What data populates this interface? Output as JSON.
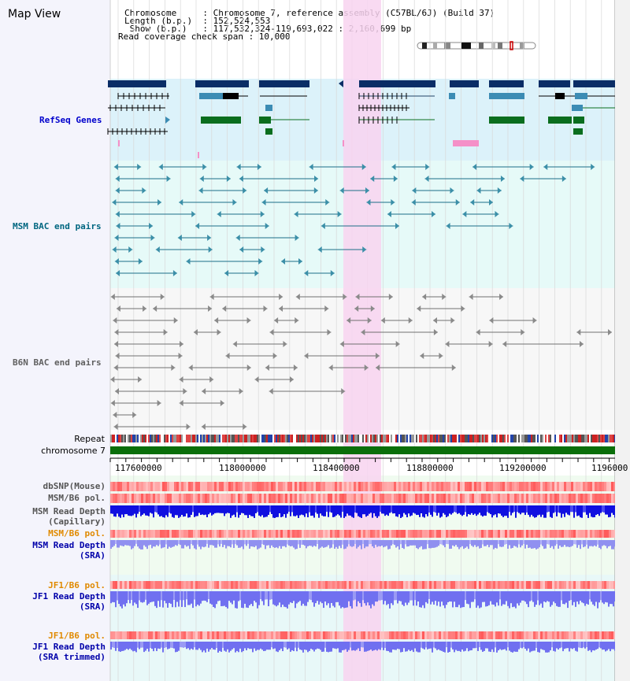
{
  "header": {
    "title": "Map View",
    "info": [
      "Chromosome     : Chromosome 7, reference assembly (C57BL/6J) (Build 37)",
      "Length (b.p.)  : 152,524,553",
      " Show (b.p.)   : 117,532,324-119,693,022 : 2,160,699 bp",
      "Read coverage check span : 10,000"
    ]
  },
  "tracks": {
    "refseq": "RefSeq Genes",
    "msm_bac": "MSM BAC end pairs",
    "b6n_bac": "B6N BAC end pairs",
    "repeat": "Repeat",
    "chromosome": "chromosome 7",
    "dbsnp": "dbSNP(Mouse)",
    "msm_pol_1": "MSM/B6 pol.",
    "msm_depth_cap_1": "MSM Read Depth",
    "msm_depth_cap_2": "(Capillary)",
    "msm_pol_2": "MSM/B6 pol.",
    "msm_depth_sra_1": "MSM Read Depth",
    "msm_depth_sra_2": "(SRA)",
    "jf1_pol_1": "JF1/B6 pol.",
    "jf1_depth_sra_1": "JF1 Read Depth",
    "jf1_depth_sra_2": "(SRA)",
    "jf1_pol_2": "JF1/B6 pol.",
    "jf1_depth_trim_1": "JF1 Read Depth",
    "jf1_depth_trim_2": "(SRA trimmed)"
  },
  "axis": {
    "ticks": [
      "117600000",
      "118000000",
      "118400000",
      "118800000",
      "119200000",
      "1196000"
    ]
  },
  "colors": {
    "refseq_label": "#0000cc",
    "msm_label": "#006680",
    "b6n_label": "#606060",
    "pol_orange": "#e08a00",
    "blue_label": "#0000aa",
    "highlight": "#f8d4f0",
    "refseq_bg": "#dcf2fa",
    "msm_bg": "#e6faf8",
    "b6n_bg": "#f7f7f7"
  }
}
